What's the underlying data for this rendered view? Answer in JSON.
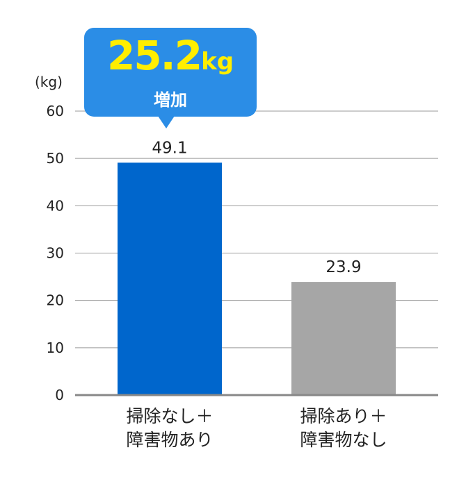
{
  "chart_data": {
    "type": "bar",
    "unit_label": "(kg)",
    "categories": [
      "掃除なし＋\n障害物あり",
      "掃除あり＋\n障害物なし"
    ],
    "values": [
      49.1,
      23.9
    ],
    "value_labels": [
      "49.1",
      "23.9"
    ],
    "ylim": [
      0,
      60
    ],
    "yticks": [
      0,
      10,
      20,
      30,
      40,
      50,
      60
    ],
    "grid": true,
    "colors": [
      "#0066cc",
      "#a6a6a6"
    ],
    "annotation": {
      "value": "25.2",
      "unit": "kg",
      "label": "増加",
      "box_color": "#2b8de6",
      "value_color": "#ffee00",
      "label_color": "#ffffff"
    }
  }
}
